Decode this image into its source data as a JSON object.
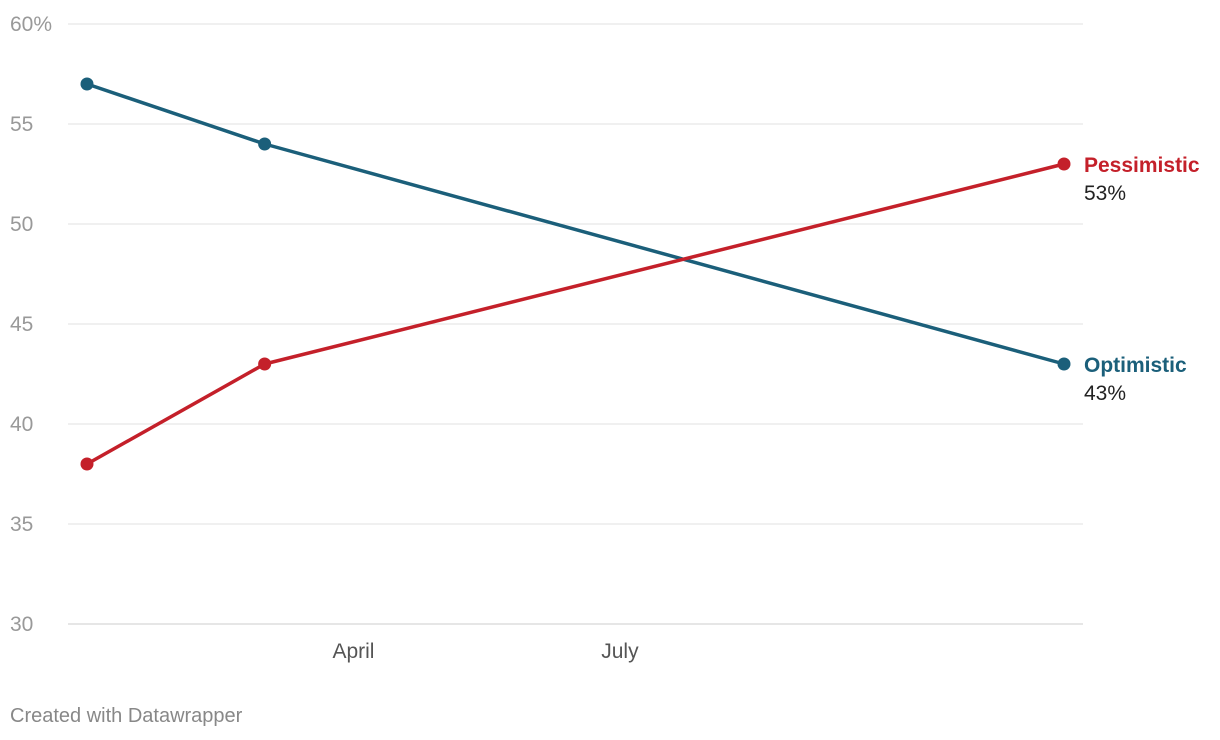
{
  "chart_data": {
    "type": "line",
    "x": [
      "Jan",
      "Mar",
      "Dec"
    ],
    "x_ticks": [
      "April",
      "July"
    ],
    "y_ticks": [
      "60%",
      "55",
      "50",
      "45",
      "40",
      "35",
      "30"
    ],
    "ylim": [
      30,
      60
    ],
    "grid": true,
    "series": [
      {
        "name": "Optimistic",
        "values": [
          57,
          54,
          43
        ],
        "end_label": "43%",
        "color": "#1b5f7a"
      },
      {
        "name": "Pessimistic",
        "values": [
          38,
          43,
          53
        ],
        "end_label": "53%",
        "color": "#c4202a"
      }
    ]
  },
  "footer": {
    "credit": "Created with Datawrapper"
  }
}
